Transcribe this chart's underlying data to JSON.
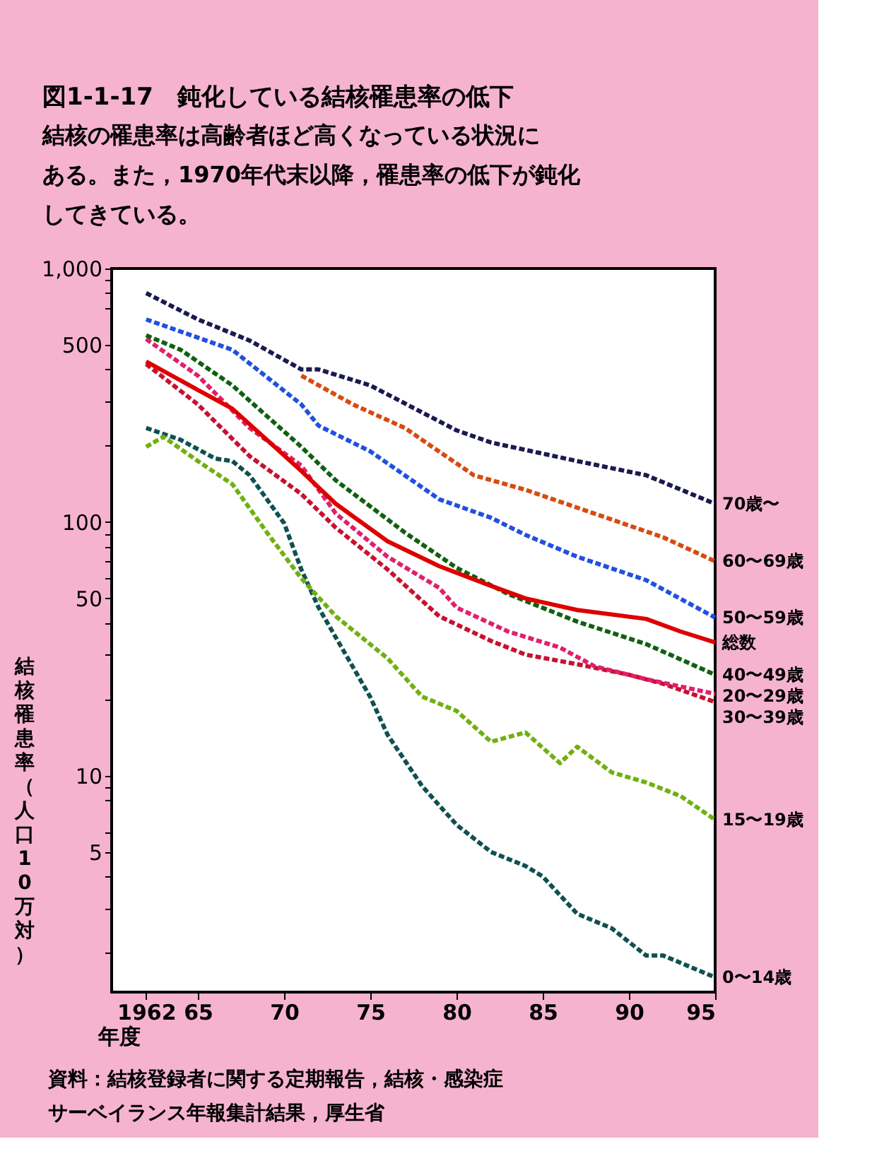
{
  "chart_data": {
    "type": "line",
    "title": "図1-1-17　鈍化している結核罹患率の低下",
    "subtitle": "　結核の罹患率は高齢者ほど高くなっている状況にある。また，1970年代末以降，罹患率の低下が鈍化してきている。",
    "xlabel": "年度",
    "ylabel": "結核罹患率（人口10万対）",
    "log": "y",
    "grid": false,
    "marker": "none",
    "xlim": [
      1960,
      1995
    ],
    "xticks": [
      1962,
      {
        "value": 1965,
        "label": "65"
      },
      {
        "value": 1970,
        "label": "70"
      },
      {
        "value": 1975,
        "label": "75"
      },
      {
        "value": 1980,
        "label": "80"
      },
      {
        "value": 1985,
        "label": "85"
      },
      {
        "value": 1990,
        "label": "90"
      },
      {
        "value": 1995,
        "label": "95"
      }
    ],
    "ylim": [
      1.4,
      1000
    ],
    "yticks": [
      {
        "value": 2,
        "label": null
      },
      {
        "value": 3,
        "label": null
      },
      {
        "value": 4,
        "label": null
      },
      5,
      {
        "value": 6,
        "label": null
      },
      {
        "value": 8,
        "label": null
      },
      {
        "value": 9,
        "label": null
      },
      10,
      {
        "value": 20,
        "label": null
      },
      {
        "value": 30,
        "label": null
      },
      {
        "value": 40,
        "label": null
      },
      50,
      {
        "value": 60,
        "label": null
      },
      {
        "value": 70,
        "label": null
      },
      {
        "value": 80,
        "label": null
      },
      {
        "value": 90,
        "label": null
      },
      100,
      {
        "value": 200,
        "label": null
      },
      {
        "value": 300,
        "label": null
      },
      {
        "value": 400,
        "label": null
      },
      500,
      {
        "value": 700,
        "label": null
      },
      {
        "value": 800,
        "label": null
      },
      {
        "value": 900,
        "label": null
      },
      {
        "value": 1000,
        "label": "1,000"
      }
    ],
    "series": [
      {
        "name": "70歳〜",
        "color": "#1a1a50",
        "line_style": "dashed",
        "x": [
          1962,
          1965,
          1968,
          1971,
          1972,
          1975,
          1980,
          1982,
          1987,
          1991,
          1995
        ],
        "values": [
          800,
          630,
          520,
          400,
          400,
          346,
          230,
          206,
          174,
          153,
          118
        ]
      },
      {
        "name": "60〜69歳",
        "color": "#d84a10",
        "line_style": "dashed",
        "x": [
          1971,
          1974,
          1977,
          1981,
          1984,
          1988,
          1992,
          1995
        ],
        "values": [
          378,
          291,
          235,
          153,
          134,
          108,
          87,
          70
        ]
      },
      {
        "name": "50〜59歳",
        "color": "#2050e0",
        "line_style": "dashed",
        "x": [
          1962,
          1967,
          1971,
          1972,
          1975,
          1979,
          1982,
          1984,
          1987,
          1991,
          1995
        ],
        "values": [
          630,
          478,
          291,
          240,
          190,
          123,
          104,
          89,
          73,
          59,
          42
        ]
      },
      {
        "name": "総数",
        "color": "#dd0000",
        "line_style": "solid",
        "x": [
          1962,
          1965,
          1967,
          1971,
          1973,
          1976,
          1979,
          1982,
          1984,
          1987,
          1991,
          1993,
          1995
        ],
        "values": [
          430,
          332,
          280,
          159,
          118,
          84,
          67,
          56,
          50,
          45,
          41.5,
          37,
          33.5
        ]
      },
      {
        "name": "40〜49歳",
        "color": "#106010",
        "line_style": "dashed",
        "x": [
          1962,
          1964,
          1967,
          1971,
          1973,
          1977,
          1980,
          1983,
          1987,
          1991,
          1995
        ],
        "values": [
          545,
          478,
          346,
          198,
          146,
          91,
          66,
          52,
          40.5,
          33,
          25
        ]
      },
      {
        "name": "20〜29歳",
        "color": "#e0206a",
        "line_style": "dashed",
        "x": [
          1962,
          1965,
          1968,
          1971,
          1973,
          1976,
          1979,
          1980,
          1983,
          1986,
          1988,
          1991,
          1995
        ],
        "values": [
          527,
          378,
          235,
          167,
          108,
          73,
          55,
          46,
          37,
          32,
          27,
          24,
          21
        ]
      },
      {
        "name": "30〜39歳",
        "color": "#c81030",
        "line_style": "dashed",
        "x": [
          1962,
          1965,
          1968,
          1971,
          1973,
          1976,
          1979,
          1982,
          1984,
          1987,
          1990,
          1992,
          1995
        ],
        "values": [
          420,
          291,
          182,
          129,
          95,
          65,
          42.5,
          34,
          30,
          27.5,
          25,
          23,
          19.5
        ]
      },
      {
        "name": "15〜19歳",
        "color": "#70b010",
        "line_style": "dashed",
        "x": [
          1962,
          1963,
          1965,
          1967,
          1969,
          1971,
          1973,
          1976,
          1978,
          1980,
          1982,
          1984,
          1986,
          1987,
          1989,
          1991,
          1993,
          1995
        ],
        "values": [
          198,
          217,
          174,
          141,
          91,
          60,
          42.5,
          29,
          20.5,
          18,
          13.6,
          14.8,
          11.2,
          13,
          10.3,
          9.4,
          8.3,
          6.7
        ]
      },
      {
        "name": "0〜14歳",
        "color": "#105050",
        "line_style": "dashed",
        "x": [
          1962,
          1964,
          1966,
          1967,
          1968,
          1970,
          1971,
          1972,
          1975,
          1976,
          1978,
          1980,
          1982,
          1984,
          1985,
          1987,
          1989,
          1991,
          1992,
          1995
        ],
        "values": [
          235,
          211,
          178,
          174,
          153,
          99,
          65,
          46,
          20.4,
          14.5,
          9.1,
          6.4,
          5,
          4.4,
          4,
          2.85,
          2.5,
          1.95,
          1.95,
          1.6
        ]
      }
    ],
    "annotations": [
      "資料：結核登録者に関する定期報告，結核・感染症",
      "　　サーベイランス年報集計結果，厚生省"
    ]
  }
}
